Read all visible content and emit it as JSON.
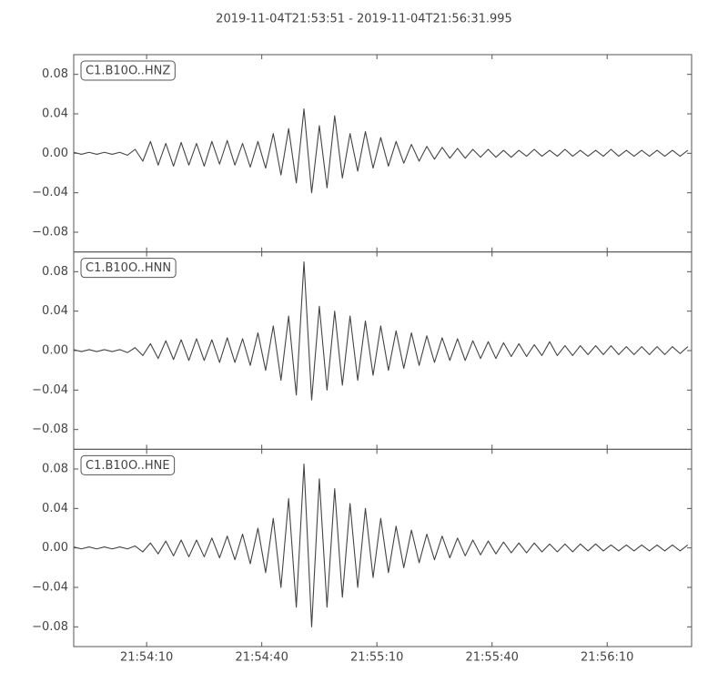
{
  "title": "2019-11-04T21:53:51  -  2019-11-04T21:56:31.995",
  "chart_data": [
    {
      "type": "line",
      "label": "C1.B10O..HNZ",
      "color": "#444444",
      "xlim": [
        0,
        160.995
      ],
      "ylim": [
        -0.1,
        0.1
      ],
      "xticks": [
        19,
        49,
        79,
        109,
        139
      ],
      "yticks": [
        {
          "value": -0.08,
          "label": "−0.08"
        },
        {
          "value": -0.04,
          "label": "−0.04"
        },
        {
          "value": 0,
          "label": "0.00"
        },
        {
          "value": 0.04,
          "label": "0.04"
        },
        {
          "value": 0.08,
          "label": "0.08"
        }
      ],
      "x": [
        0,
        2,
        4,
        6,
        8,
        10,
        12,
        14,
        16,
        18,
        20,
        22,
        24,
        26,
        28,
        30,
        32,
        34,
        36,
        38,
        40,
        42,
        44,
        46,
        48,
        50,
        52,
        54,
        56,
        58,
        60,
        62,
        64,
        66,
        68,
        70,
        72,
        74,
        76,
        78,
        80,
        82,
        84,
        86,
        88,
        90,
        92,
        94,
        96,
        98,
        100,
        102,
        104,
        106,
        108,
        110,
        112,
        114,
        116,
        118,
        120,
        122,
        124,
        126,
        128,
        130,
        132,
        134,
        136,
        138,
        140,
        142,
        144,
        146,
        148,
        150,
        152,
        154,
        156,
        158,
        160
      ],
      "values": [
        0.001,
        -0.001,
        0.001,
        -0.001,
        0.001,
        -0.001,
        0.001,
        -0.002,
        0.004,
        -0.008,
        0.012,
        -0.012,
        0.01,
        -0.013,
        0.011,
        -0.012,
        0.01,
        -0.013,
        0.012,
        -0.011,
        0.013,
        -0.012,
        0.01,
        -0.014,
        0.012,
        -0.015,
        0.02,
        -0.022,
        0.025,
        -0.03,
        0.045,
        -0.04,
        0.028,
        -0.035,
        0.038,
        -0.025,
        0.02,
        -0.018,
        0.022,
        -0.015,
        0.016,
        -0.013,
        0.012,
        -0.01,
        0.009,
        -0.008,
        0.007,
        -0.006,
        0.006,
        -0.005,
        0.005,
        -0.005,
        0.004,
        -0.004,
        0.004,
        -0.004,
        0.003,
        -0.004,
        0.003,
        -0.003,
        0.004,
        -0.003,
        0.003,
        -0.003,
        0.004,
        -0.003,
        0.003,
        -0.003,
        0.003,
        -0.003,
        0.004,
        -0.003,
        0.003,
        -0.003,
        0.003,
        -0.003,
        0.003,
        -0.003,
        0.003,
        -0.003,
        0.003
      ]
    },
    {
      "type": "line",
      "label": "C1.B10O..HNN",
      "color": "#444444",
      "xlim": [
        0,
        160.995
      ],
      "ylim": [
        -0.1,
        0.1
      ],
      "xticks": [
        19,
        49,
        79,
        109,
        139
      ],
      "yticks": [
        {
          "value": -0.08,
          "label": "−0.08"
        },
        {
          "value": -0.04,
          "label": "−0.04"
        },
        {
          "value": 0,
          "label": "0.00"
        },
        {
          "value": 0.04,
          "label": "0.04"
        },
        {
          "value": 0.08,
          "label": "0.08"
        }
      ],
      "x": [
        0,
        2,
        4,
        6,
        8,
        10,
        12,
        14,
        16,
        18,
        20,
        22,
        24,
        26,
        28,
        30,
        32,
        34,
        36,
        38,
        40,
        42,
        44,
        46,
        48,
        50,
        52,
        54,
        56,
        58,
        60,
        62,
        64,
        66,
        68,
        70,
        72,
        74,
        76,
        78,
        80,
        82,
        84,
        86,
        88,
        90,
        92,
        94,
        96,
        98,
        100,
        102,
        104,
        106,
        108,
        110,
        112,
        114,
        116,
        118,
        120,
        122,
        124,
        126,
        128,
        130,
        132,
        134,
        136,
        138,
        140,
        142,
        144,
        146,
        148,
        150,
        152,
        154,
        156,
        158,
        160
      ],
      "values": [
        0.001,
        -0.001,
        0.001,
        -0.001,
        0.001,
        -0.001,
        0.001,
        -0.002,
        0.003,
        -0.005,
        0.007,
        -0.008,
        0.01,
        -0.009,
        0.011,
        -0.01,
        0.012,
        -0.01,
        0.011,
        -0.012,
        0.013,
        -0.012,
        0.012,
        -0.015,
        0.018,
        -0.02,
        0.025,
        -0.03,
        0.035,
        -0.045,
        0.09,
        -0.05,
        0.045,
        -0.04,
        0.04,
        -0.035,
        0.035,
        -0.03,
        0.03,
        -0.025,
        0.025,
        -0.02,
        0.02,
        -0.018,
        0.018,
        -0.015,
        0.015,
        -0.012,
        0.013,
        -0.01,
        0.012,
        -0.01,
        0.01,
        -0.008,
        0.009,
        -0.008,
        0.008,
        -0.006,
        0.007,
        -0.006,
        0.006,
        -0.005,
        0.009,
        -0.005,
        0.005,
        -0.005,
        0.005,
        -0.004,
        0.005,
        -0.004,
        0.005,
        -0.004,
        0.004,
        -0.004,
        0.004,
        -0.004,
        0.004,
        -0.004,
        0.004,
        -0.003,
        0.004
      ]
    },
    {
      "type": "line",
      "label": "C1.B10O..HNE",
      "color": "#444444",
      "xlim": [
        0,
        160.995
      ],
      "ylim": [
        -0.1,
        0.1
      ],
      "xticks": [
        {
          "value": 19,
          "label": "21:54:10"
        },
        {
          "value": 49,
          "label": "21:54:40"
        },
        {
          "value": 79,
          "label": "21:55:10"
        },
        {
          "value": 109,
          "label": "21:55:40"
        },
        {
          "value": 139,
          "label": "21:56:10"
        }
      ],
      "yticks": [
        {
          "value": -0.08,
          "label": "−0.08"
        },
        {
          "value": -0.04,
          "label": "−0.04"
        },
        {
          "value": 0,
          "label": "0.00"
        },
        {
          "value": 0.04,
          "label": "0.04"
        },
        {
          "value": 0.08,
          "label": "0.08"
        }
      ],
      "x": [
        0,
        2,
        4,
        6,
        8,
        10,
        12,
        14,
        16,
        18,
        20,
        22,
        24,
        26,
        28,
        30,
        32,
        34,
        36,
        38,
        40,
        42,
        44,
        46,
        48,
        50,
        52,
        54,
        56,
        58,
        60,
        62,
        64,
        66,
        68,
        70,
        72,
        74,
        76,
        78,
        80,
        82,
        84,
        86,
        88,
        90,
        92,
        94,
        96,
        98,
        100,
        102,
        104,
        106,
        108,
        110,
        112,
        114,
        116,
        118,
        120,
        122,
        124,
        126,
        128,
        130,
        132,
        134,
        136,
        138,
        140,
        142,
        144,
        146,
        148,
        150,
        152,
        154,
        156,
        158,
        160
      ],
      "values": [
        0.001,
        -0.001,
        0.001,
        -0.001,
        0.001,
        -0.001,
        0.001,
        -0.001,
        0.002,
        -0.004,
        0.005,
        -0.006,
        0.007,
        -0.008,
        0.008,
        -0.009,
        0.008,
        -0.009,
        0.01,
        -0.01,
        0.012,
        -0.012,
        0.014,
        -0.016,
        0.02,
        -0.025,
        0.03,
        -0.04,
        0.05,
        -0.06,
        0.085,
        -0.08,
        0.07,
        -0.06,
        0.06,
        -0.05,
        0.045,
        -0.04,
        0.04,
        -0.03,
        0.03,
        -0.025,
        0.022,
        -0.02,
        0.018,
        -0.015,
        0.014,
        -0.012,
        0.012,
        -0.01,
        0.01,
        -0.008,
        0.008,
        -0.007,
        0.007,
        -0.006,
        0.006,
        -0.005,
        0.005,
        -0.005,
        0.005,
        -0.004,
        0.004,
        -0.004,
        0.004,
        -0.004,
        0.004,
        -0.003,
        0.004,
        -0.003,
        0.003,
        -0.003,
        0.003,
        -0.003,
        0.003,
        -0.003,
        0.003,
        -0.003,
        0.003,
        -0.003,
        0.003
      ]
    }
  ]
}
